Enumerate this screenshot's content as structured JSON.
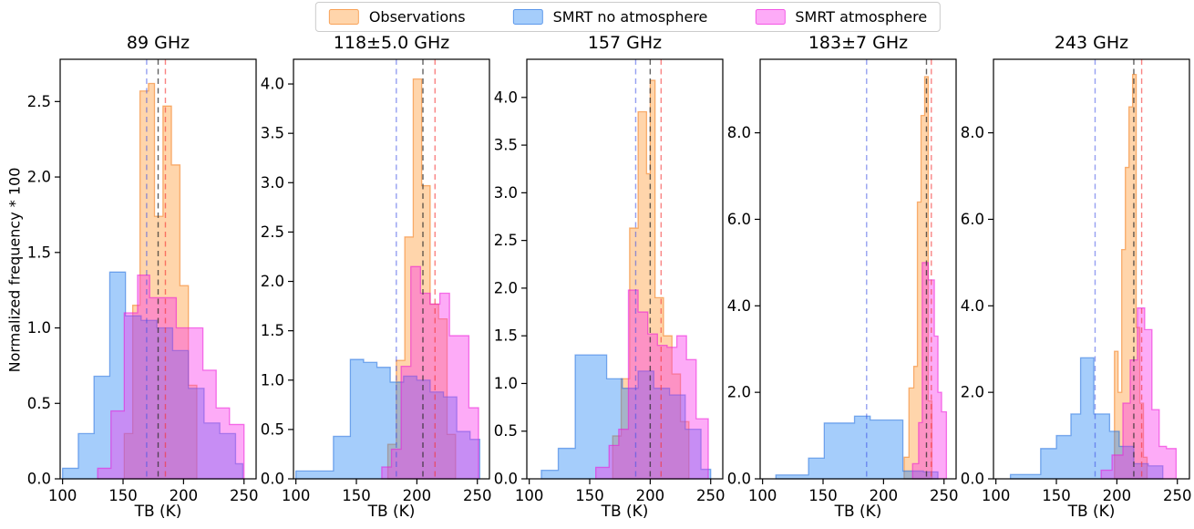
{
  "figure": {
    "ylabel": "Normalized frequency * 100"
  },
  "legend": {
    "items": [
      {
        "label": "Observations",
        "series": "observations"
      },
      {
        "label": "SMRT no atmosphere",
        "series": "smrt_no_atmosphere"
      },
      {
        "label": "SMRT atmosphere",
        "series": "smrt_atmosphere"
      }
    ]
  },
  "colors": {
    "observations": {
      "fill": "rgba(255,150,45,0.40)",
      "edge": "rgba(242,120,20,0.55)"
    },
    "smrt_no_atmosphere": {
      "fill": "rgba(30,130,245,0.40)",
      "edge": "rgba(20,100,220,0.50)"
    },
    "smrt_atmosphere": {
      "fill": "rgba(250,45,235,0.40)",
      "edge": "rgba(235,20,215,0.55)"
    },
    "vlines": {
      "blue": "rgba(60,80,230,0.55)",
      "black": "rgba(45,45,45,0.75)",
      "red": "rgba(245,50,50,0.60)"
    }
  },
  "chart_data": [
    {
      "type": "bar",
      "subtype": "overlapping-histograms",
      "title": "89 GHz",
      "xlabel": "TB (K)",
      "xlim": [
        98,
        260
      ],
      "ylim": [
        0,
        2.78
      ],
      "xticks": [
        100,
        150,
        200,
        250
      ],
      "xtick_labels": [
        "100",
        "150",
        "200",
        "250"
      ],
      "yticks": [
        0,
        0.5,
        1.0,
        1.5,
        2.0,
        2.5
      ],
      "ytick_labels": [
        "0.0",
        "0.5",
        "1.0",
        "1.5",
        "2.0",
        "2.5"
      ],
      "vlines": [
        {
          "color": "blue",
          "x": 169.5
        },
        {
          "color": "black",
          "x": 179.0
        },
        {
          "color": "red",
          "x": 185.0
        }
      ],
      "series": [
        {
          "name": "observations",
          "bin_edges": [
            151,
            158,
            164,
            171,
            176,
            183,
            190,
            197,
            204,
            211
          ],
          "heights": [
            0.3,
            1.15,
            2.57,
            2.62,
            1.74,
            2.47,
            2.08,
            1.28,
            0.62
          ]
        },
        {
          "name": "smrt_no_atmosphere",
          "bin_edges": [
            100,
            113,
            126,
            139,
            152,
            165,
            178,
            191,
            204,
            217,
            230,
            243,
            249
          ],
          "heights": [
            0.07,
            0.3,
            0.68,
            1.37,
            1.08,
            1.05,
            1.0,
            0.85,
            0.6,
            0.37,
            0.3,
            0.1
          ]
        },
        {
          "name": "smrt_atmosphere",
          "bin_edges": [
            129,
            140,
            151,
            162,
            172,
            183,
            194,
            205,
            216,
            227,
            238,
            250
          ],
          "heights": [
            0.07,
            0.45,
            1.1,
            1.35,
            1.2,
            1.2,
            1.0,
            1.0,
            0.72,
            0.47,
            0.36
          ]
        }
      ]
    },
    {
      "type": "bar",
      "subtype": "overlapping-histograms",
      "title": "118±5.0 GHz",
      "xlabel": "TB (K)",
      "xlim": [
        98,
        260
      ],
      "ylim": [
        0,
        4.25
      ],
      "xticks": [
        100,
        150,
        200,
        250
      ],
      "xtick_labels": [
        "100",
        "150",
        "200",
        "250"
      ],
      "yticks": [
        0,
        0.5,
        1.0,
        1.5,
        2.0,
        2.5,
        3.0,
        3.5,
        4.0
      ],
      "ytick_labels": [
        "0.0",
        "0.5",
        "1.0",
        "1.5",
        "2.0",
        "2.5",
        "3.0",
        "3.5",
        "4.0"
      ],
      "vlines": [
        {
          "color": "blue",
          "x": 183.0
        },
        {
          "color": "black",
          "x": 205.0
        },
        {
          "color": "red",
          "x": 215.0
        }
      ],
      "series": [
        {
          "name": "observations",
          "bin_edges": [
            176,
            183,
            190,
            197,
            204,
            211,
            218,
            225,
            232
          ],
          "heights": [
            0.35,
            1.2,
            2.45,
            4.05,
            2.97,
            1.77,
            1.62,
            0.45
          ]
        },
        {
          "name": "smrt_no_atmosphere",
          "bin_edges": [
            100,
            131,
            145,
            156,
            167,
            178,
            189,
            200,
            211,
            222,
            233,
            244,
            252
          ],
          "heights": [
            0.08,
            0.43,
            1.21,
            1.18,
            1.13,
            0.98,
            1.04,
            1.0,
            0.88,
            0.83,
            0.48,
            0.4
          ]
        },
        {
          "name": "smrt_atmosphere",
          "bin_edges": [
            171,
            179,
            187,
            195,
            203,
            211,
            219,
            227,
            235,
            243,
            251
          ],
          "heights": [
            0.12,
            0.3,
            1.14,
            2.15,
            1.88,
            1.77,
            1.88,
            1.45,
            1.45,
            0.72
          ]
        }
      ]
    },
    {
      "type": "bar",
      "subtype": "overlapping-histograms",
      "title": "157 GHz",
      "xlabel": "TB (K)",
      "xlim": [
        98,
        260
      ],
      "ylim": [
        0,
        4.4
      ],
      "xticks": [
        100,
        150,
        200,
        250
      ],
      "xtick_labels": [
        "100",
        "150",
        "200",
        "250"
      ],
      "yticks": [
        0,
        0.5,
        1.0,
        1.5,
        2.0,
        2.5,
        3.0,
        3.5,
        4.0
      ],
      "ytick_labels": [
        "0.0",
        "0.5",
        "1.0",
        "1.5",
        "2.0",
        "2.5",
        "3.0",
        "3.5",
        "4.0"
      ],
      "vlines": [
        {
          "color": "blue",
          "x": 188.0
        },
        {
          "color": "black",
          "x": 200.0
        },
        {
          "color": "red",
          "x": 209.0
        }
      ],
      "series": [
        {
          "name": "observations",
          "bin_edges": [
            169,
            176,
            183,
            190,
            197,
            200,
            204,
            211,
            218,
            225,
            232
          ],
          "heights": [
            0.45,
            1.05,
            2.63,
            3.85,
            3.2,
            4.18,
            1.9,
            1.5,
            1.1,
            0.6
          ]
        },
        {
          "name": "smrt_no_atmosphere",
          "bin_edges": [
            110,
            124,
            138,
            151,
            164,
            177,
            190,
            203,
            216,
            229,
            242,
            250
          ],
          "heights": [
            0.09,
            0.32,
            1.3,
            1.3,
            1.05,
            0.95,
            1.13,
            0.95,
            0.88,
            0.52,
            0.1
          ]
        },
        {
          "name": "smrt_atmosphere",
          "bin_edges": [
            155,
            166,
            174,
            182,
            190,
            198,
            206,
            214,
            222,
            230,
            238,
            248
          ],
          "heights": [
            0.12,
            0.35,
            0.52,
            1.98,
            1.75,
            1.52,
            1.4,
            1.38,
            1.5,
            1.25,
            0.63
          ]
        }
      ]
    },
    {
      "type": "bar",
      "subtype": "overlapping-histograms",
      "title": "183±7 GHz",
      "xlabel": "TB (K)",
      "xlim": [
        98,
        260
      ],
      "ylim": [
        0,
        9.7
      ],
      "xticks": [
        100,
        150,
        200,
        250
      ],
      "xtick_labels": [
        "100",
        "150",
        "200",
        "250"
      ],
      "yticks": [
        0,
        2.0,
        4.0,
        6.0,
        8.0
      ],
      "ytick_labels": [
        "0.0",
        "2.0",
        "4.0",
        "6.0",
        "8.0"
      ],
      "vlines": [
        {
          "color": "blue",
          "x": 186.0
        },
        {
          "color": "black",
          "x": 235.5
        },
        {
          "color": "red",
          "x": 239.5
        }
      ],
      "series": [
        {
          "name": "observations",
          "bin_edges": [
            217,
            221,
            225,
            228,
            231,
            234,
            237,
            240
          ],
          "heights": [
            0.5,
            2.1,
            2.6,
            6.4,
            8.4,
            9.3,
            1.8
          ]
        },
        {
          "name": "smrt_no_atmosphere",
          "bin_edges": [
            111,
            138,
            151,
            176,
            189,
            216,
            233,
            245
          ],
          "heights": [
            0.09,
            0.48,
            1.29,
            1.45,
            1.36,
            0.18,
            0.16
          ]
        },
        {
          "name": "smrt_atmosphere",
          "bin_edges": [
            224,
            229,
            232,
            237,
            242,
            245,
            248,
            252
          ],
          "heights": [
            0.35,
            1.3,
            5.0,
            4.6,
            3.3,
            2.0,
            1.55
          ]
        }
      ]
    },
    {
      "type": "bar",
      "subtype": "overlapping-histograms",
      "title": "243 GHz",
      "xlabel": "TB (K)",
      "xlim": [
        98,
        260
      ],
      "ylim": [
        0,
        9.7
      ],
      "xticks": [
        100,
        150,
        200,
        250
      ],
      "xtick_labels": [
        "100",
        "150",
        "200",
        "250"
      ],
      "yticks": [
        0,
        2.0,
        4.0,
        6.0,
        8.0
      ],
      "ytick_labels": [
        "0.0",
        "2.0",
        "4.0",
        "6.0",
        "8.0"
      ],
      "vlines": [
        {
          "color": "blue",
          "x": 182.0
        },
        {
          "color": "black",
          "x": 214.0
        },
        {
          "color": "red",
          "x": 220.5
        }
      ],
      "series": [
        {
          "name": "observations",
          "bin_edges": [
            198,
            201,
            204,
            207,
            210,
            213,
            216,
            219,
            222,
            225
          ],
          "heights": [
            2.95,
            2.0,
            5.3,
            7.2,
            8.6,
            9.35,
            3.5,
            1.75,
            0.5
          ]
        },
        {
          "name": "smrt_no_atmosphere",
          "bin_edges": [
            112,
            137,
            150,
            162,
            170,
            181,
            194,
            202,
            214,
            226,
            238
          ],
          "heights": [
            0.1,
            0.7,
            1.0,
            1.5,
            2.8,
            1.5,
            1.1,
            0.75,
            0.35,
            0.3
          ]
        },
        {
          "name": "smrt_atmosphere",
          "bin_edges": [
            187,
            196,
            205,
            211,
            217,
            223,
            229,
            235,
            241,
            249
          ],
          "heights": [
            0.2,
            0.55,
            1.75,
            2.75,
            3.95,
            3.45,
            1.6,
            0.75,
            0.7
          ]
        }
      ]
    }
  ]
}
